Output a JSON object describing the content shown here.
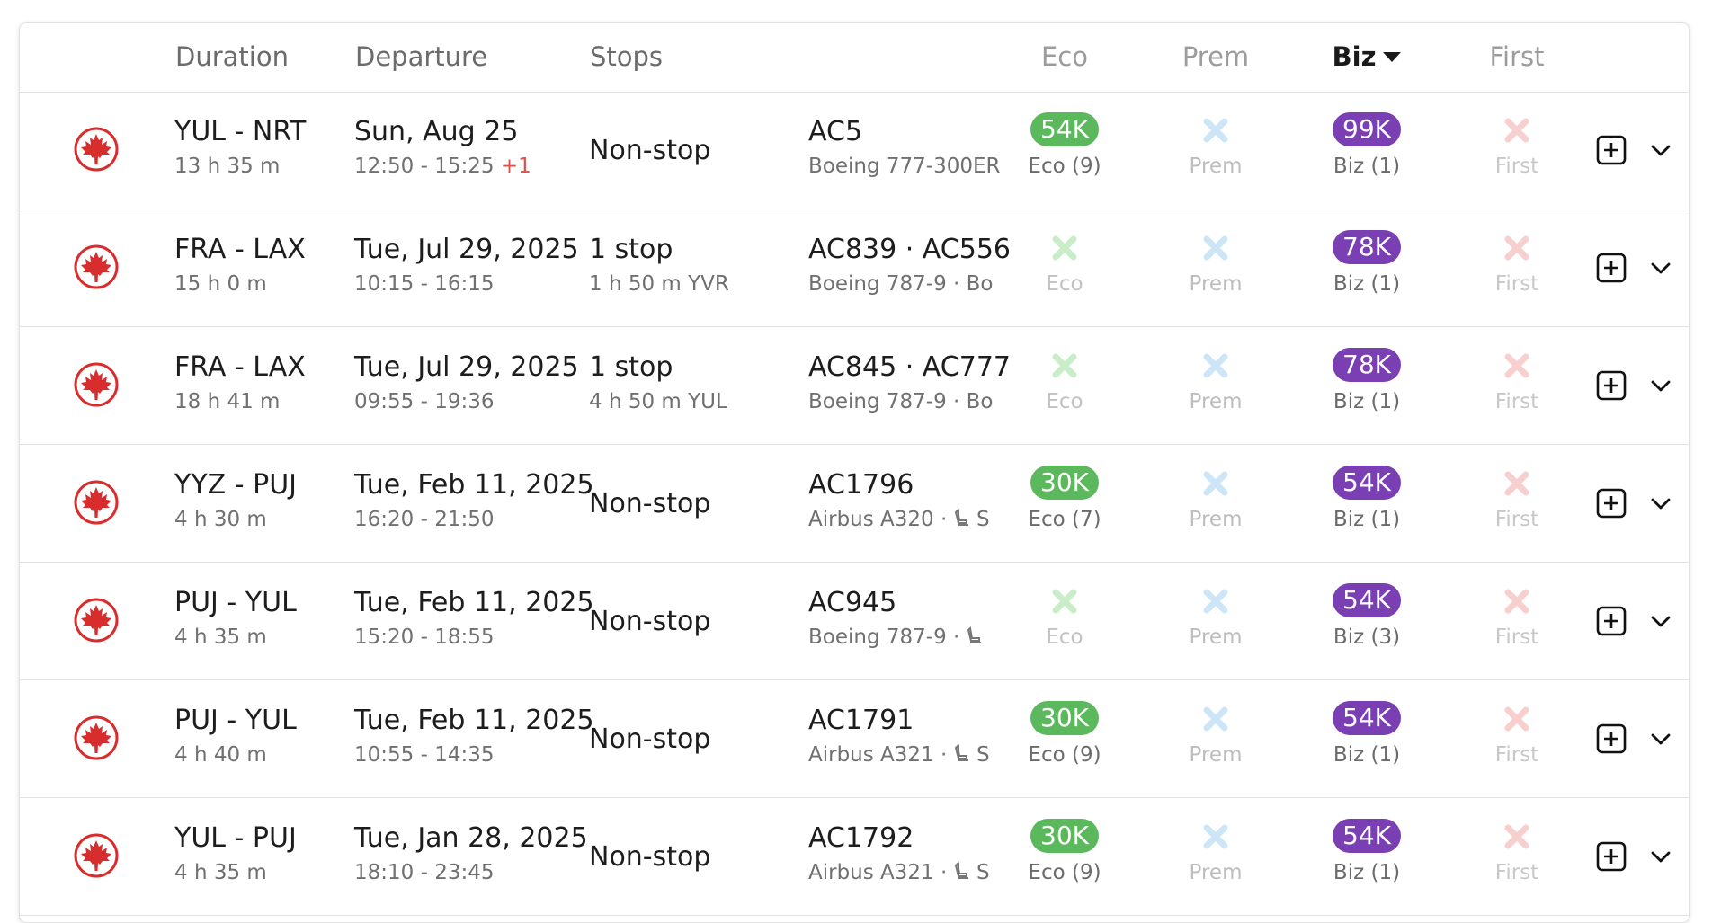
{
  "header": {
    "duration": "Duration",
    "departure": "Departure",
    "stops": "Stops",
    "eco": "Eco",
    "prem": "Prem",
    "biz": "Biz",
    "first": "First",
    "sorted_column": "Biz"
  },
  "colors": {
    "eco_pill": "#5cb85c",
    "biz_pill": "#7a3fb3",
    "eco_x": "#c9ecc9",
    "prem_x": "#cce6f7",
    "first_x": "#f8cfcf",
    "logo_red": "#d82d2d"
  },
  "icons": {
    "airline_logo": "air-canada-maple-leaf-icon",
    "add": "plus-square-icon",
    "expand": "chevron-down-icon",
    "seat": "seat-icon",
    "unavailable": "x-icon"
  },
  "flights": [
    {
      "route": "YUL - NRT",
      "duration": "13 h 35 m",
      "date": "Sun, Aug 25",
      "times": "12:50 - 15:25",
      "day_offset": "+1",
      "stops": "Non-stop",
      "stop_detail": "",
      "flight": "AC5",
      "aircraft": "Boeing 777-300ER",
      "eco": {
        "available": true,
        "price": "54K",
        "label": "Eco (9)"
      },
      "prem": {
        "available": false,
        "price": "",
        "label": "Prem"
      },
      "biz": {
        "available": true,
        "price": "99K",
        "label": "Biz (1)"
      },
      "first": {
        "available": false,
        "price": "",
        "label": "First"
      }
    },
    {
      "route": "FRA - LAX",
      "duration": "15 h 0 m",
      "date": "Tue, Jul 29, 2025",
      "times": "10:15 - 16:15",
      "day_offset": "",
      "stops": "1 stop",
      "stop_detail": "1 h 50 m  YVR",
      "flight": "AC839  ·  AC556",
      "aircraft": "Boeing 787-9  ·  Bo",
      "eco": {
        "available": false,
        "price": "",
        "label": "Eco"
      },
      "prem": {
        "available": false,
        "price": "",
        "label": "Prem"
      },
      "biz": {
        "available": true,
        "price": "78K",
        "label": "Biz (1)"
      },
      "first": {
        "available": false,
        "price": "",
        "label": "First"
      }
    },
    {
      "route": "FRA - LAX",
      "duration": "18 h 41 m",
      "date": "Tue, Jul 29, 2025",
      "times": "09:55 - 19:36",
      "day_offset": "",
      "stops": "1 stop",
      "stop_detail": "4 h 50 m  YUL",
      "flight": "AC845  ·  AC777",
      "aircraft": "Boeing 787-9  ·  Bo",
      "eco": {
        "available": false,
        "price": "",
        "label": "Eco"
      },
      "prem": {
        "available": false,
        "price": "",
        "label": "Prem"
      },
      "biz": {
        "available": true,
        "price": "78K",
        "label": "Biz (1)"
      },
      "first": {
        "available": false,
        "price": "",
        "label": "First"
      }
    },
    {
      "route": "YYZ - PUJ",
      "duration": "4 h 30 m",
      "date": "Tue, Feb 11, 2025",
      "times": "16:20 - 21:50",
      "day_offset": "",
      "stops": "Non-stop",
      "stop_detail": "",
      "flight": "AC1796",
      "aircraft": "Airbus A320  ·",
      "aircraft_suffix": "S",
      "eco": {
        "available": true,
        "price": "30K",
        "label": "Eco (7)"
      },
      "prem": {
        "available": false,
        "price": "",
        "label": "Prem"
      },
      "biz": {
        "available": true,
        "price": "54K",
        "label": "Biz (1)"
      },
      "first": {
        "available": false,
        "price": "",
        "label": "First"
      }
    },
    {
      "route": "PUJ - YUL",
      "duration": "4 h 35 m",
      "date": "Tue, Feb 11, 2025",
      "times": "15:20 - 18:55",
      "day_offset": "",
      "stops": "Non-stop",
      "stop_detail": "",
      "flight": "AC945",
      "aircraft": "Boeing 787-9  ·",
      "aircraft_suffix": "",
      "eco": {
        "available": false,
        "price": "",
        "label": "Eco"
      },
      "prem": {
        "available": false,
        "price": "",
        "label": "Prem"
      },
      "biz": {
        "available": true,
        "price": "54K",
        "label": "Biz (3)"
      },
      "first": {
        "available": false,
        "price": "",
        "label": "First"
      }
    },
    {
      "route": "PUJ - YUL",
      "duration": "4 h 40 m",
      "date": "Tue, Feb 11, 2025",
      "times": "10:55 - 14:35",
      "day_offset": "",
      "stops": "Non-stop",
      "stop_detail": "",
      "flight": "AC1791",
      "aircraft": "Airbus A321  ·",
      "aircraft_suffix": "S",
      "eco": {
        "available": true,
        "price": "30K",
        "label": "Eco (9)"
      },
      "prem": {
        "available": false,
        "price": "",
        "label": "Prem"
      },
      "biz": {
        "available": true,
        "price": "54K",
        "label": "Biz (1)"
      },
      "first": {
        "available": false,
        "price": "",
        "label": "First"
      }
    },
    {
      "route": "YUL - PUJ",
      "duration": "4 h 35 m",
      "date": "Tue, Jan 28, 2025",
      "times": "18:10 - 23:45",
      "day_offset": "",
      "stops": "Non-stop",
      "stop_detail": "",
      "flight": "AC1792",
      "aircraft": "Airbus A321  ·",
      "aircraft_suffix": "S",
      "eco": {
        "available": true,
        "price": "30K",
        "label": "Eco (9)"
      },
      "prem": {
        "available": false,
        "price": "",
        "label": "Prem"
      },
      "biz": {
        "available": true,
        "price": "54K",
        "label": "Biz (1)"
      },
      "first": {
        "available": false,
        "price": "",
        "label": "First"
      }
    }
  ]
}
